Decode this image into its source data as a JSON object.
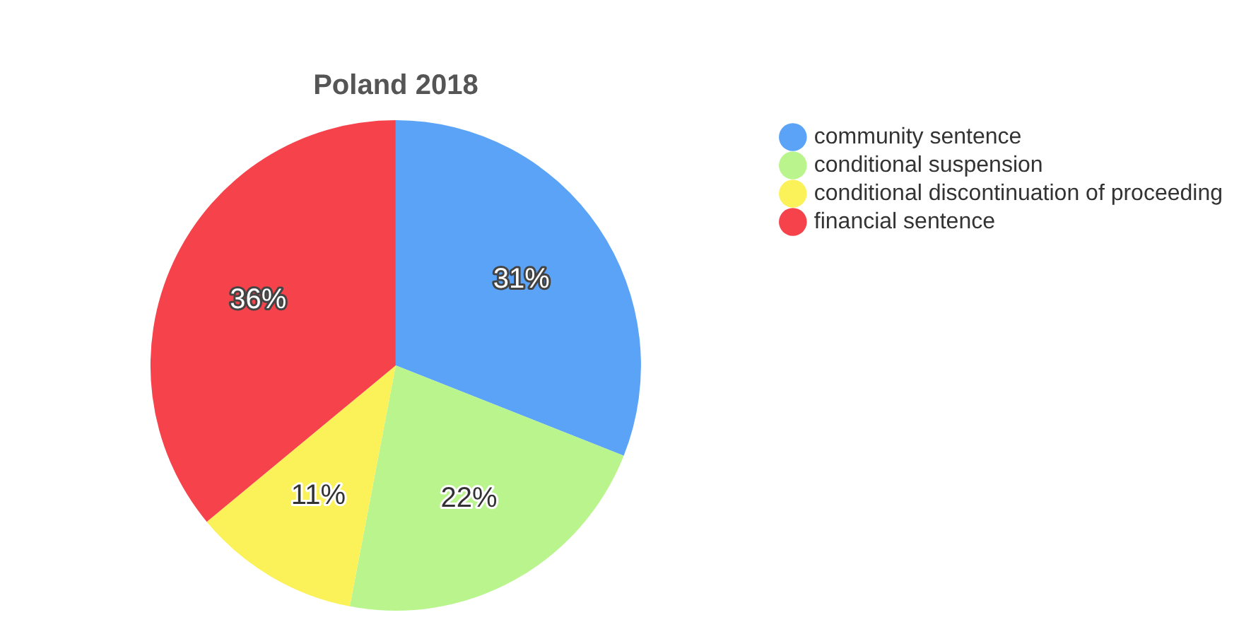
{
  "chart_data": {
    "type": "pie",
    "title": "Poland 2018",
    "categories": [
      "community sentence",
      "conditional suspension",
      "conditional discontinuation of proceeding",
      "financial sentence"
    ],
    "values": [
      31,
      22,
      11,
      36
    ],
    "colors": [
      "#5ba3f7",
      "#b9f58c",
      "#fbf25a",
      "#f5424b"
    ],
    "value_labels": [
      "31%",
      "22%",
      "11%",
      "36%"
    ],
    "legend": "top right"
  }
}
